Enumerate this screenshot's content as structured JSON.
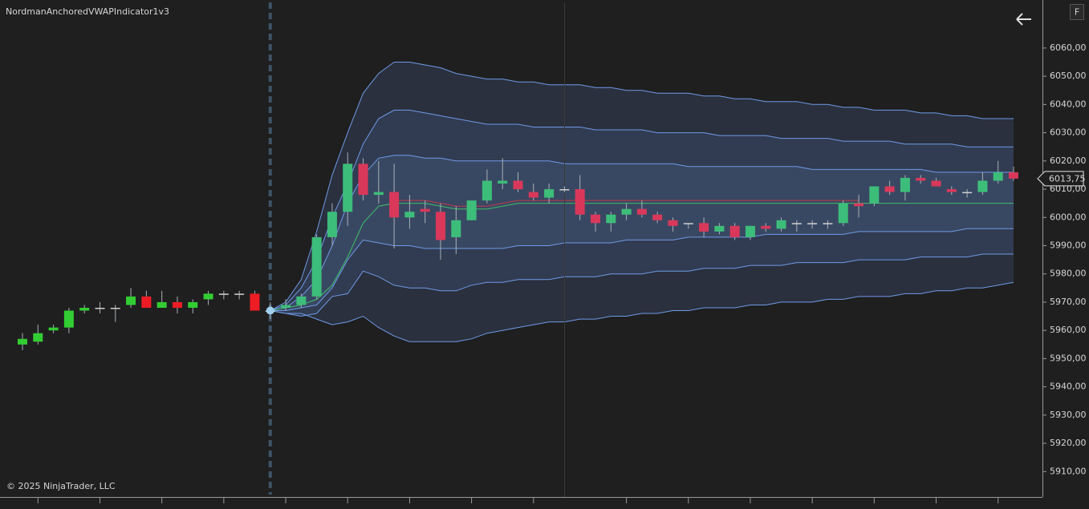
{
  "title": "NordmanAnchoredVWAPIndicator1v3",
  "copyright": "© 2025 NinjaTrader, LLC",
  "button": "F",
  "chart_data": {
    "type": "candlestick",
    "open": [
      5955,
      5956,
      5960,
      5961,
      5967,
      5968,
      5968,
      5969,
      5972,
      5968,
      5970,
      5968,
      5971,
      5973,
      5973,
      5973,
      5967,
      5968,
      5969,
      5972,
      5993,
      6002,
      6019,
      6008,
      6009,
      6000,
      6003,
      6002,
      5993,
      5999,
      6006,
      6012,
      6013,
      6009,
      6007,
      6010,
      6010,
      6001,
      5998,
      6001,
      6003,
      6001,
      5999,
      5998,
      5998,
      5995,
      5997,
      5993,
      5997,
      5996,
      5998,
      5998,
      5998,
      5998,
      6005,
      6005,
      6011,
      6009,
      6014,
      6013,
      6010,
      6009,
      6009,
      6013,
      6016
    ],
    "high": [
      5959,
      5962,
      5962,
      5968,
      5969,
      5970,
      5969,
      5975,
      5974,
      5974,
      5972,
      5971,
      5974,
      5974,
      5974,
      5974,
      5970,
      5971,
      5973,
      5994,
      6005,
      6023,
      6021,
      6020,
      6019,
      6008,
      6006,
      6005,
      6004,
      6006,
      6017,
      6021,
      6016,
      6012,
      6012,
      6011,
      6015,
      6002,
      6002,
      6005,
      6006,
      6002,
      6000,
      5998,
      6000,
      5998,
      5998,
      5997,
      5998,
      6000,
      5999,
      5999,
      5999,
      6006,
      6008,
      6011,
      6013,
      6015,
      6015,
      6014,
      6011,
      6010,
      6016,
      6020,
      6018
    ],
    "low": [
      5953,
      5955,
      5959,
      5959,
      5966,
      5966,
      5963,
      5968,
      5968,
      5968,
      5966,
      5966,
      5969,
      5971,
      5971,
      5967,
      5964,
      5967,
      5968,
      5971,
      5990,
      5997,
      6006,
      6005,
      5989,
      5996,
      5998,
      5985,
      5987,
      5999,
      6005,
      6010,
      6009,
      6006,
      6005,
      6009,
      5999,
      5995,
      5995,
      5999,
      6000,
      5998,
      5995,
      5996,
      5993,
      5994,
      5992,
      5992,
      5995,
      5995,
      5995,
      5996,
      5996,
      5997,
      6000,
      6004,
      6008,
      6006,
      6012,
      6011,
      6008,
      6007,
      6008,
      6012,
      6013
    ],
    "close": [
      5957,
      5959,
      5961,
      5967,
      5968,
      5968,
      5968,
      5972,
      5968,
      5970,
      5968,
      5970,
      5973,
      5973,
      5973,
      5967,
      5967,
      5969,
      5972,
      5993,
      6002,
      6019,
      6008,
      6009,
      6000,
      6002,
      6002,
      5992,
      5999,
      6006,
      6013,
      6013,
      6010,
      6007,
      6010,
      6010,
      6001,
      5998,
      6001,
      6003,
      6001,
      5999,
      5997,
      5998,
      5995,
      5997,
      5993,
      5997,
      5996,
      5999,
      5998,
      5998,
      5998,
      6005,
      6004,
      6011,
      6009,
      6014,
      6013,
      6011,
      6009,
      6009,
      6013,
      6016,
      6013.75
    ],
    "up_color": "#3dbd7a",
    "down_color": "#d9385a",
    "pre_anchor_up_color": "#32cd32",
    "pre_anchor_down_color": "#ee1c25",
    "doji_color": "#d0d0d0",
    "anchor_index": 16,
    "series": [
      {
        "color": "#6f9ae8",
        "values": [
          null,
          null,
          null,
          null,
          null,
          null,
          null,
          null,
          null,
          null,
          null,
          null,
          null,
          null,
          null,
          null,
          5967,
          5970,
          5978,
          5995,
          6015,
          6030,
          6044,
          6051,
          6055,
          6055,
          6054,
          6053,
          6051,
          6050,
          6049,
          6049,
          6048,
          6048,
          6047,
          6047,
          6047,
          6046,
          6046,
          6045,
          6045,
          6044,
          6044,
          6044,
          6043,
          6043,
          6042,
          6042,
          6041,
          6041,
          6041,
          6040,
          6040,
          6039,
          6039,
          6038,
          6038,
          6038,
          6037,
          6037,
          6036,
          6036,
          6035,
          6035,
          6035
        ]
      },
      {
        "color": "#6f9ae8",
        "values": [
          null,
          null,
          null,
          null,
          null,
          null,
          null,
          null,
          null,
          null,
          null,
          null,
          null,
          null,
          null,
          null,
          5967,
          5969,
          5975,
          5985,
          6000,
          6012,
          6026,
          6035,
          6038,
          6038,
          6037,
          6036,
          6035,
          6034,
          6033,
          6033,
          6033,
          6032,
          6032,
          6032,
          6032,
          6031,
          6031,
          6031,
          6031,
          6030,
          6030,
          6030,
          6030,
          6029,
          6029,
          6029,
          6029,
          6028,
          6028,
          6028,
          6028,
          6027,
          6027,
          6027,
          6027,
          6026,
          6026,
          6026,
          6026,
          6025,
          6025,
          6025,
          6025
        ]
      },
      {
        "color": "#6f9ae8",
        "values": [
          null,
          null,
          null,
          null,
          null,
          null,
          null,
          null,
          null,
          null,
          null,
          null,
          null,
          null,
          null,
          null,
          5967,
          5968,
          5972,
          5978,
          5990,
          6005,
          6015,
          6021,
          6022,
          6022,
          6021,
          6021,
          6020,
          6020,
          6020,
          6020,
          6020,
          6020,
          6020,
          6019,
          6019,
          6019,
          6019,
          6019,
          6019,
          6019,
          6019,
          6018,
          6018,
          6018,
          6018,
          6018,
          6018,
          6018,
          6018,
          6017,
          6017,
          6017,
          6017,
          6017,
          6017,
          6017,
          6017,
          6016,
          6016,
          6016,
          6016,
          6016,
          6016
        ]
      },
      {
        "color": "#6f9ae8",
        "values": [
          null,
          null,
          null,
          null,
          null,
          null,
          null,
          null,
          null,
          null,
          null,
          null,
          null,
          null,
          null,
          null,
          5967,
          5967,
          5968,
          5969,
          5975,
          5985,
          5992,
          5991,
          5990,
          5990,
          5989,
          5989,
          5989,
          5989,
          5989,
          5989,
          5990,
          5990,
          5990,
          5991,
          5991,
          5991,
          5991,
          5992,
          5992,
          5992,
          5992,
          5993,
          5993,
          5993,
          5993,
          5993,
          5994,
          5994,
          5994,
          5994,
          5994,
          5994,
          5995,
          5995,
          5995,
          5995,
          5995,
          5995,
          5995,
          5996,
          5996,
          5996,
          5996
        ]
      },
      {
        "color": "#6f9ae8",
        "values": [
          null,
          null,
          null,
          null,
          null,
          null,
          null,
          null,
          null,
          null,
          null,
          null,
          null,
          null,
          null,
          null,
          5967,
          5966,
          5965,
          5966,
          5972,
          5973,
          5981,
          5979,
          5976,
          5975,
          5975,
          5974,
          5974,
          5976,
          5977,
          5977,
          5978,
          5978,
          5978,
          5979,
          5979,
          5979,
          5980,
          5980,
          5980,
          5981,
          5981,
          5981,
          5982,
          5982,
          5982,
          5983,
          5983,
          5983,
          5984,
          5984,
          5984,
          5984,
          5985,
          5985,
          5985,
          5985,
          5986,
          5986,
          5986,
          5986,
          5987,
          5987,
          5987
        ]
      },
      {
        "color": "#6f9ae8",
        "values": [
          null,
          null,
          null,
          null,
          null,
          null,
          null,
          null,
          null,
          null,
          null,
          null,
          null,
          null,
          null,
          null,
          5967,
          5966,
          5966,
          5964,
          5962,
          5963,
          5965,
          5961,
          5958,
          5956,
          5956,
          5956,
          5956,
          5957,
          5959,
          5960,
          5961,
          5962,
          5963,
          5963,
          5964,
          5964,
          5965,
          5965,
          5966,
          5966,
          5967,
          5967,
          5968,
          5968,
          5968,
          5969,
          5969,
          5970,
          5970,
          5970,
          5971,
          5971,
          5972,
          5972,
          5972,
          5973,
          5973,
          5974,
          5974,
          5975,
          5975,
          5976,
          5977
        ]
      },
      {
        "color": "#3fbf6a",
        "values": [
          null,
          null,
          null,
          null,
          null,
          null,
          null,
          null,
          null,
          null,
          null,
          null,
          null,
          null,
          null,
          null,
          5967,
          5968,
          5969,
          5971,
          5976,
          5986,
          5998,
          6004,
          6005,
          6005,
          6005,
          6004,
          6003,
          6003,
          6003,
          6004,
          6005,
          6005,
          6005,
          6005,
          6005,
          6005,
          6005,
          6005,
          6005,
          6005,
          6005,
          6005,
          6005,
          6005,
          6005,
          6005,
          6005,
          6005,
          6005,
          6005,
          6005,
          6005,
          6005,
          6005,
          6005,
          6005,
          6005,
          6005,
          6005,
          6005,
          6005,
          6005,
          6005
        ]
      },
      {
        "color": "#c23a4a",
        "values": [
          null,
          null,
          null,
          null,
          null,
          null,
          null,
          null,
          null,
          null,
          null,
          null,
          null,
          null,
          null,
          null,
          null,
          null,
          null,
          null,
          null,
          null,
          null,
          null,
          6006,
          6006,
          6006,
          6005,
          6004,
          6004,
          6004,
          6005,
          6006,
          6006,
          6006,
          6006,
          6006,
          6006,
          6006,
          6006,
          6006,
          6006,
          6006,
          6006,
          6006,
          6006,
          6006,
          6006,
          6006,
          6006,
          6006,
          6006,
          6006,
          6006,
          6006,
          null,
          null,
          null,
          null,
          null,
          null,
          null,
          null,
          null,
          null
        ]
      }
    ],
    "band_fills": [
      "#2a303d",
      "#313b51",
      "#394862"
    ],
    "last_price": {
      "value": 6013.75,
      "label": "6013,75"
    },
    "ylim": [
      5901,
      6077
    ],
    "yticks": [
      {
        "value": 5910,
        "label": "5910,00"
      },
      {
        "value": 5920,
        "label": "5920,00"
      },
      {
        "value": 5930,
        "label": "5930,00"
      },
      {
        "value": 5940,
        "label": "5940,00"
      },
      {
        "value": 5950,
        "label": "5950,00"
      },
      {
        "value": 5960,
        "label": "5960,00"
      },
      {
        "value": 5970,
        "label": "5970,00"
      },
      {
        "value": 5980,
        "label": "5980,00"
      },
      {
        "value": 5990,
        "label": "5990,00"
      },
      {
        "value": 6000,
        "label": "6000,00"
      },
      {
        "value": 6010,
        "label": "6010,00"
      },
      {
        "value": 6020,
        "label": "6020,00"
      },
      {
        "value": 6030,
        "label": "6030,00"
      },
      {
        "value": 6040,
        "label": "6040,00"
      },
      {
        "value": 6050,
        "label": "6050,00"
      },
      {
        "value": 6060,
        "label": "6060,00"
      }
    ]
  }
}
